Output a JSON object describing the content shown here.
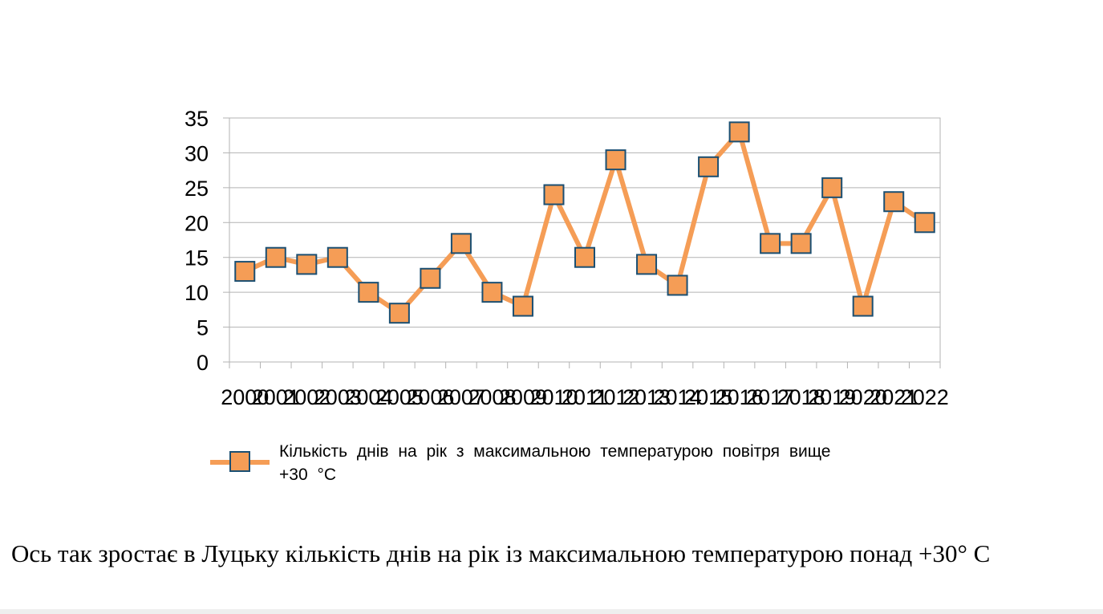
{
  "chart_data": {
    "type": "line",
    "title": "",
    "xlabel": "",
    "ylabel": "",
    "ylim": [
      0,
      35
    ],
    "yticks": [
      0,
      5,
      10,
      15,
      20,
      25,
      30,
      35
    ],
    "grid": true,
    "legend_position": "bottom",
    "categories": [
      "2000",
      "2001",
      "2002",
      "2003",
      "2004",
      "2005",
      "2006",
      "2007",
      "2008",
      "2009",
      "2010",
      "2011",
      "2012",
      "2013",
      "2014",
      "2015",
      "2016",
      "2017",
      "2018",
      "2019",
      "2020",
      "2021",
      "2022"
    ],
    "series": [
      {
        "name": "Кількість днів на рік з максимальною температурою повітря вище +30 °C",
        "legend_lines": [
          "Кількість днів на рік з максимальною температурою повітря вище",
          "+30 °C"
        ],
        "values": [
          13,
          15,
          14,
          15,
          10,
          7,
          12,
          17,
          10,
          8,
          24,
          15,
          29,
          14,
          11,
          28,
          33,
          17,
          17,
          25,
          8,
          23,
          20
        ],
        "color": "#f59d56",
        "marker_border": "#1b4f72"
      }
    ]
  },
  "caption": "Ось так зростає в Луцьку кількість днів на рік із максимальною температурою понад +30° C"
}
